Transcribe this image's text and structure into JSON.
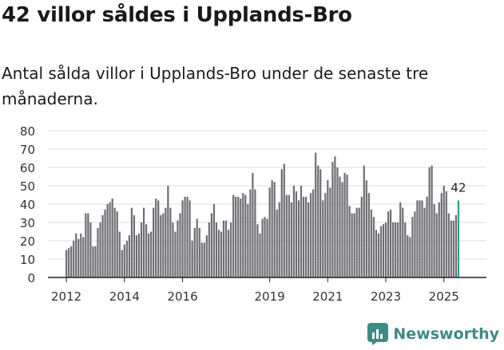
{
  "header": {
    "title": "42 villor såldes i Upplands-Bro",
    "subtitle": "Antal sålda villor i Upplands-Bro under de senaste tre månaderna."
  },
  "brand": {
    "name": "Newsworthy"
  },
  "colors": {
    "bar": "#6e6d73",
    "highlight": "#2a9d96",
    "grid": "#dedede",
    "axis": "#222222",
    "brand": "#3f8a83"
  },
  "chart_data": {
    "type": "bar",
    "title": "42 villor såldes i Upplands-Bro",
    "subtitle": "Antal sålda villor i Upplands-Bro under de senaste tre månaderna.",
    "xlabel": "",
    "ylabel": "",
    "ylim": [
      0,
      80
    ],
    "yticks": [
      0,
      10,
      20,
      30,
      40,
      50,
      60,
      70,
      80
    ],
    "grid": true,
    "start_year": 2012,
    "start_month": 1,
    "xtick_labels": [
      "2012",
      "2014",
      "2016",
      "2019",
      "2021",
      "2023",
      "2025"
    ],
    "highlight_label": "42",
    "values": [
      15,
      16,
      17,
      20,
      24,
      21,
      24,
      22,
      35,
      35,
      30,
      17,
      17,
      27,
      30,
      34,
      37,
      40,
      41,
      43,
      38,
      36,
      25,
      15,
      18,
      20,
      23,
      38,
      34,
      23,
      24,
      30,
      38,
      29,
      24,
      25,
      38,
      43,
      42,
      34,
      35,
      38,
      50,
      38,
      30,
      25,
      31,
      35,
      42,
      44,
      44,
      42,
      20,
      27,
      32,
      27,
      19,
      19,
      23,
      30,
      35,
      40,
      30,
      26,
      25,
      31,
      31,
      26,
      30,
      45,
      44,
      44,
      43,
      46,
      45,
      40,
      48,
      57,
      48,
      29,
      24,
      32,
      33,
      32,
      49,
      53,
      52,
      37,
      41,
      59,
      62,
      45,
      45,
      41,
      50,
      47,
      42,
      50,
      44,
      44,
      41,
      46,
      48,
      68,
      61,
      59,
      42,
      46,
      53,
      49,
      63,
      66,
      60,
      55,
      52,
      57,
      56,
      39,
      35,
      35,
      38,
      38,
      44,
      61,
      53,
      46,
      37,
      33,
      26,
      24,
      28,
      29,
      30,
      36,
      37,
      30,
      30,
      30,
      41,
      38,
      30,
      23,
      22,
      33,
      36,
      42,
      42,
      42,
      38,
      44,
      60,
      61,
      40,
      35,
      41,
      46,
      50,
      47,
      35,
      31,
      31,
      34,
      42
    ]
  }
}
